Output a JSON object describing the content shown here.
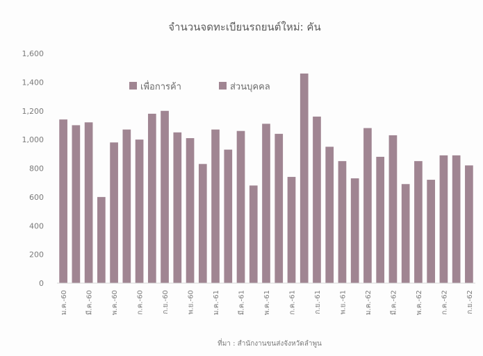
{
  "chart_data": {
    "type": "bar",
    "title": "จำนวนจดทะเบียนรถยนต์ใหม่: คัน",
    "xlabel": "",
    "ylabel": "",
    "ylim": [
      0,
      1600
    ],
    "yticks": [
      0,
      200,
      400,
      600,
      800,
      1000,
      1200,
      1400,
      1600
    ],
    "ytick_labels": [
      "0",
      "200",
      "400",
      "600",
      "800",
      "1,000",
      "1,200",
      "1,400",
      "1,600"
    ],
    "xtick_labels": [
      {
        "index": 0,
        "label": "ม.ค.-60"
      },
      {
        "index": 2,
        "label": "มี.ค.-60"
      },
      {
        "index": 4,
        "label": "พ.ค.-60"
      },
      {
        "index": 6,
        "label": "ก.ค.-60"
      },
      {
        "index": 8,
        "label": "ก.ย.-60"
      },
      {
        "index": 10,
        "label": "พ.ย.-60"
      },
      {
        "index": 12,
        "label": "ม.ค.-61"
      },
      {
        "index": 14,
        "label": "มี.ค.-61"
      },
      {
        "index": 16,
        "label": "พ.ค.-61"
      },
      {
        "index": 18,
        "label": "ก.ค.-61"
      },
      {
        "index": 20,
        "label": "ก.ย.-61"
      },
      {
        "index": 22,
        "label": "พ.ย.-61"
      },
      {
        "index": 24,
        "label": "ม.ค.-62"
      },
      {
        "index": 26,
        "label": "มี.ค.-62"
      },
      {
        "index": 28,
        "label": "พ.ค.-62"
      },
      {
        "index": 30,
        "label": "ก.ค.-62"
      },
      {
        "index": 32,
        "label": "ก.ย.-62"
      }
    ],
    "series": [
      {
        "name": "เพื่อการค้า",
        "color": "#a08592"
      },
      {
        "name": "ส่วนบุคคล",
        "color": "#a08592"
      }
    ],
    "values": [
      1140,
      1100,
      1120,
      600,
      980,
      1070,
      1000,
      1180,
      1200,
      1050,
      1010,
      830,
      1070,
      930,
      1060,
      680,
      1110,
      1040,
      740,
      1460,
      1160,
      950,
      850,
      730,
      1080,
      880,
      1030,
      690,
      850,
      720,
      890,
      890,
      820
    ],
    "legend_position": "top-left",
    "grid": false,
    "source_note": "ที่มา : สำนักงานขนส่งจังหวัดลำพูน"
  },
  "colors": {
    "bar": "#a08592",
    "axis_text": "#7a7a7a",
    "title": "#5a5a5a"
  }
}
